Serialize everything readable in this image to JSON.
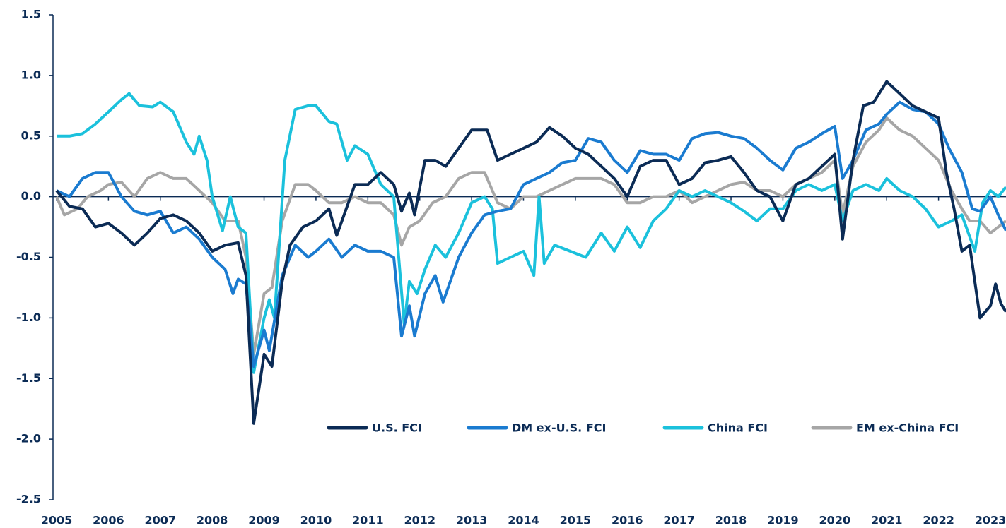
{
  "chart_data": {
    "type": "line",
    "xlim": [
      2005,
      2023.3
    ],
    "ylim": [
      -2.5,
      1.5
    ],
    "xticks": [
      2005,
      2006,
      2007,
      2008,
      2009,
      2010,
      2011,
      2012,
      2013,
      2014,
      2015,
      2016,
      2017,
      2018,
      2019,
      2020,
      2021,
      2022,
      2023
    ],
    "yticks": [
      {
        "value": 1.5,
        "label": "1.5"
      },
      {
        "value": 1,
        "label": "1.0"
      },
      {
        "value": 0.5,
        "label": "0.5"
      },
      {
        "value": 0,
        "label": "0.0"
      },
      {
        "value": -0.5,
        "label": "-0.5"
      },
      {
        "value": -1,
        "label": "-1.0"
      },
      {
        "value": -1.5,
        "label": "-1.5"
      },
      {
        "value": -2,
        "label": "-2.0"
      },
      {
        "value": -2.5,
        "label": "-2.5"
      }
    ],
    "series": [
      {
        "name": "U.S. FCI",
        "color": "#0b2b55",
        "x": [
          2005.0,
          2005.25,
          2005.5,
          2005.75,
          2006.0,
          2006.25,
          2006.5,
          2006.75,
          2007.0,
          2007.25,
          2007.5,
          2007.75,
          2008.0,
          2008.25,
          2008.5,
          2008.65,
          2008.8,
          2009.0,
          2009.15,
          2009.35,
          2009.5,
          2009.75,
          2010.0,
          2010.25,
          2010.4,
          2010.75,
          2011.0,
          2011.25,
          2011.5,
          2011.65,
          2011.8,
          2011.9,
          2012.1,
          2012.3,
          2012.5,
          2012.75,
          2013.0,
          2013.3,
          2013.5,
          2013.75,
          2014.0,
          2014.25,
          2014.5,
          2014.75,
          2015.0,
          2015.25,
          2015.5,
          2015.75,
          2016.0,
          2016.25,
          2016.5,
          2016.75,
          2017.0,
          2017.25,
          2017.5,
          2017.75,
          2018.0,
          2018.25,
          2018.5,
          2018.75,
          2019.0,
          2019.25,
          2019.5,
          2019.75,
          2020.0,
          2020.15,
          2020.35,
          2020.55,
          2020.75,
          2021.0,
          2021.25,
          2021.5,
          2021.75,
          2022.0,
          2022.15,
          2022.3,
          2022.45,
          2022.6,
          2022.8,
          2023.0,
          2023.1,
          2023.2,
          2023.3
        ],
        "values": [
          0.05,
          -0.08,
          -0.1,
          -0.25,
          -0.22,
          -0.3,
          -0.4,
          -0.3,
          -0.18,
          -0.15,
          -0.2,
          -0.3,
          -0.45,
          -0.4,
          -0.38,
          -0.65,
          -1.87,
          -1.3,
          -1.4,
          -0.7,
          -0.4,
          -0.25,
          -0.2,
          -0.1,
          -0.32,
          0.1,
          0.1,
          0.2,
          0.1,
          -0.12,
          0.03,
          -0.15,
          0.3,
          0.3,
          0.25,
          0.4,
          0.55,
          0.55,
          0.3,
          0.35,
          0.4,
          0.45,
          0.57,
          0.5,
          0.4,
          0.35,
          0.25,
          0.15,
          0.0,
          0.25,
          0.3,
          0.3,
          0.1,
          0.15,
          0.28,
          0.3,
          0.33,
          0.2,
          0.05,
          0.0,
          -0.2,
          0.1,
          0.15,
          0.25,
          0.35,
          -0.35,
          0.3,
          0.75,
          0.78,
          0.95,
          0.85,
          0.75,
          0.7,
          0.65,
          0.2,
          -0.1,
          -0.45,
          -0.4,
          -1.0,
          -0.9,
          -0.72,
          -0.88,
          -0.95
        ]
      },
      {
        "name": "DM ex-U.S. FCI",
        "color": "#1a7bd0",
        "x": [
          2005.0,
          2005.25,
          2005.5,
          2005.75,
          2006.0,
          2006.25,
          2006.5,
          2006.75,
          2007.0,
          2007.25,
          2007.5,
          2007.75,
          2008.0,
          2008.25,
          2008.4,
          2008.5,
          2008.65,
          2008.8,
          2009.0,
          2009.1,
          2009.35,
          2009.6,
          2009.85,
          2010.0,
          2010.25,
          2010.5,
          2010.75,
          2011.0,
          2011.25,
          2011.5,
          2011.65,
          2011.8,
          2011.9,
          2012.1,
          2012.3,
          2012.45,
          2012.75,
          2013.0,
          2013.25,
          2013.5,
          2013.75,
          2014.0,
          2014.25,
          2014.5,
          2014.75,
          2015.0,
          2015.25,
          2015.5,
          2015.75,
          2016.0,
          2016.25,
          2016.5,
          2016.75,
          2017.0,
          2017.25,
          2017.5,
          2017.75,
          2018.0,
          2018.25,
          2018.5,
          2018.75,
          2019.0,
          2019.25,
          2019.5,
          2019.75,
          2020.0,
          2020.15,
          2020.35,
          2020.6,
          2020.85,
          2021.0,
          2021.25,
          2021.5,
          2021.75,
          2022.0,
          2022.2,
          2022.45,
          2022.65,
          2022.8,
          2023.0,
          2023.15,
          2023.3
        ],
        "values": [
          0.05,
          0.0,
          0.15,
          0.2,
          0.2,
          0.0,
          -0.12,
          -0.15,
          -0.12,
          -0.3,
          -0.25,
          -0.35,
          -0.5,
          -0.6,
          -0.8,
          -0.68,
          -0.72,
          -1.4,
          -1.1,
          -1.27,
          -0.65,
          -0.4,
          -0.5,
          -0.45,
          -0.35,
          -0.5,
          -0.4,
          -0.45,
          -0.45,
          -0.5,
          -1.15,
          -0.9,
          -1.15,
          -0.8,
          -0.65,
          -0.87,
          -0.5,
          -0.3,
          -0.15,
          -0.12,
          -0.1,
          0.1,
          0.15,
          0.2,
          0.28,
          0.3,
          0.48,
          0.45,
          0.3,
          0.2,
          0.38,
          0.35,
          0.35,
          0.3,
          0.48,
          0.52,
          0.53,
          0.5,
          0.48,
          0.4,
          0.3,
          0.22,
          0.4,
          0.45,
          0.52,
          0.58,
          0.15,
          0.3,
          0.55,
          0.6,
          0.68,
          0.78,
          0.72,
          0.7,
          0.6,
          0.4,
          0.2,
          -0.1,
          -0.12,
          0.0,
          -0.15,
          -0.28
        ]
      },
      {
        "name": "China FCI",
        "color": "#1bc1dc",
        "x": [
          2005.0,
          2005.25,
          2005.5,
          2005.75,
          2006.0,
          2006.25,
          2006.4,
          2006.6,
          2006.85,
          2007.0,
          2007.25,
          2007.5,
          2007.65,
          2007.75,
          2007.9,
          2008.0,
          2008.2,
          2008.35,
          2008.5,
          2008.65,
          2008.8,
          2009.0,
          2009.1,
          2009.2,
          2009.4,
          2009.6,
          2009.85,
          2010.0,
          2010.25,
          2010.4,
          2010.6,
          2010.75,
          2011.0,
          2011.25,
          2011.5,
          2011.7,
          2011.8,
          2011.95,
          2012.1,
          2012.3,
          2012.5,
          2012.75,
          2013.0,
          2013.25,
          2013.4,
          2013.5,
          2013.75,
          2014.0,
          2014.2,
          2014.3,
          2014.4,
          2014.6,
          2014.9,
          2015.2,
          2015.5,
          2015.75,
          2016.0,
          2016.25,
          2016.5,
          2016.75,
          2017.0,
          2017.25,
          2017.5,
          2017.75,
          2018.0,
          2018.25,
          2018.5,
          2018.75,
          2019.0,
          2019.25,
          2019.5,
          2019.75,
          2020.0,
          2020.15,
          2020.35,
          2020.6,
          2020.85,
          2021.0,
          2021.25,
          2021.5,
          2021.75,
          2022.0,
          2022.25,
          2022.45,
          2022.7,
          2022.85,
          2023.0,
          2023.15,
          2023.3
        ],
        "values": [
          0.5,
          0.5,
          0.52,
          0.6,
          0.7,
          0.8,
          0.85,
          0.75,
          0.74,
          0.78,
          0.7,
          0.45,
          0.35,
          0.5,
          0.3,
          0.0,
          -0.28,
          0.0,
          -0.25,
          -0.3,
          -1.45,
          -1.0,
          -0.85,
          -1.0,
          0.3,
          0.72,
          0.75,
          0.75,
          0.62,
          0.6,
          0.3,
          0.42,
          0.35,
          0.1,
          0.0,
          -1.05,
          -0.7,
          -0.8,
          -0.6,
          -0.4,
          -0.5,
          -0.3,
          -0.05,
          0.0,
          -0.1,
          -0.55,
          -0.5,
          -0.45,
          -0.65,
          0.0,
          -0.55,
          -0.4,
          -0.45,
          -0.5,
          -0.3,
          -0.45,
          -0.25,
          -0.42,
          -0.2,
          -0.1,
          0.05,
          0.0,
          0.05,
          0.0,
          -0.05,
          -0.12,
          -0.2,
          -0.1,
          -0.1,
          0.05,
          0.1,
          0.05,
          0.1,
          -0.2,
          0.05,
          0.1,
          0.05,
          0.15,
          0.05,
          0.0,
          -0.1,
          -0.25,
          -0.2,
          -0.15,
          -0.45,
          -0.05,
          0.05,
          0.0,
          0.08
        ]
      },
      {
        "name": "EM ex-China FCI",
        "color": "#a6a6a6",
        "x": [
          2005.0,
          2005.15,
          2005.4,
          2005.6,
          2005.85,
          2006.0,
          2006.25,
          2006.5,
          2006.75,
          2007.0,
          2007.25,
          2007.5,
          2007.75,
          2008.0,
          2008.25,
          2008.5,
          2008.65,
          2008.8,
          2009.0,
          2009.15,
          2009.35,
          2009.6,
          2009.85,
          2010.0,
          2010.25,
          2010.5,
          2010.75,
          2011.0,
          2011.25,
          2011.5,
          2011.65,
          2011.8,
          2012.0,
          2012.25,
          2012.5,
          2012.75,
          2013.0,
          2013.25,
          2013.5,
          2013.75,
          2014.0,
          2014.25,
          2014.5,
          2014.75,
          2015.0,
          2015.25,
          2015.5,
          2015.75,
          2016.0,
          2016.25,
          2016.5,
          2016.75,
          2017.0,
          2017.25,
          2017.5,
          2017.75,
          2018.0,
          2018.25,
          2018.5,
          2018.75,
          2019.0,
          2019.25,
          2019.5,
          2019.75,
          2020.0,
          2020.15,
          2020.35,
          2020.6,
          2020.85,
          2021.0,
          2021.25,
          2021.5,
          2021.75,
          2022.0,
          2022.25,
          2022.45,
          2022.6,
          2022.8,
          2023.0,
          2023.15,
          2023.3
        ],
        "values": [
          0.0,
          -0.15,
          -0.1,
          0.0,
          0.05,
          0.1,
          0.12,
          0.0,
          0.15,
          0.2,
          0.15,
          0.15,
          0.05,
          -0.05,
          -0.2,
          -0.2,
          -0.5,
          -1.3,
          -0.8,
          -0.75,
          -0.2,
          0.1,
          0.1,
          0.05,
          -0.05,
          -0.05,
          0.0,
          -0.05,
          -0.05,
          -0.15,
          -0.4,
          -0.25,
          -0.2,
          -0.05,
          0.0,
          0.15,
          0.2,
          0.2,
          -0.05,
          -0.1,
          0.0,
          0.0,
          0.05,
          0.1,
          0.15,
          0.15,
          0.15,
          0.1,
          -0.05,
          -0.05,
          0.0,
          0.0,
          0.05,
          -0.05,
          0.0,
          0.05,
          0.1,
          0.12,
          0.05,
          0.05,
          0.0,
          0.1,
          0.15,
          0.2,
          0.3,
          -0.15,
          0.25,
          0.45,
          0.55,
          0.65,
          0.55,
          0.5,
          0.4,
          0.3,
          0.05,
          -0.1,
          -0.2,
          -0.2,
          -0.3,
          -0.25,
          -0.2
        ]
      }
    ]
  }
}
